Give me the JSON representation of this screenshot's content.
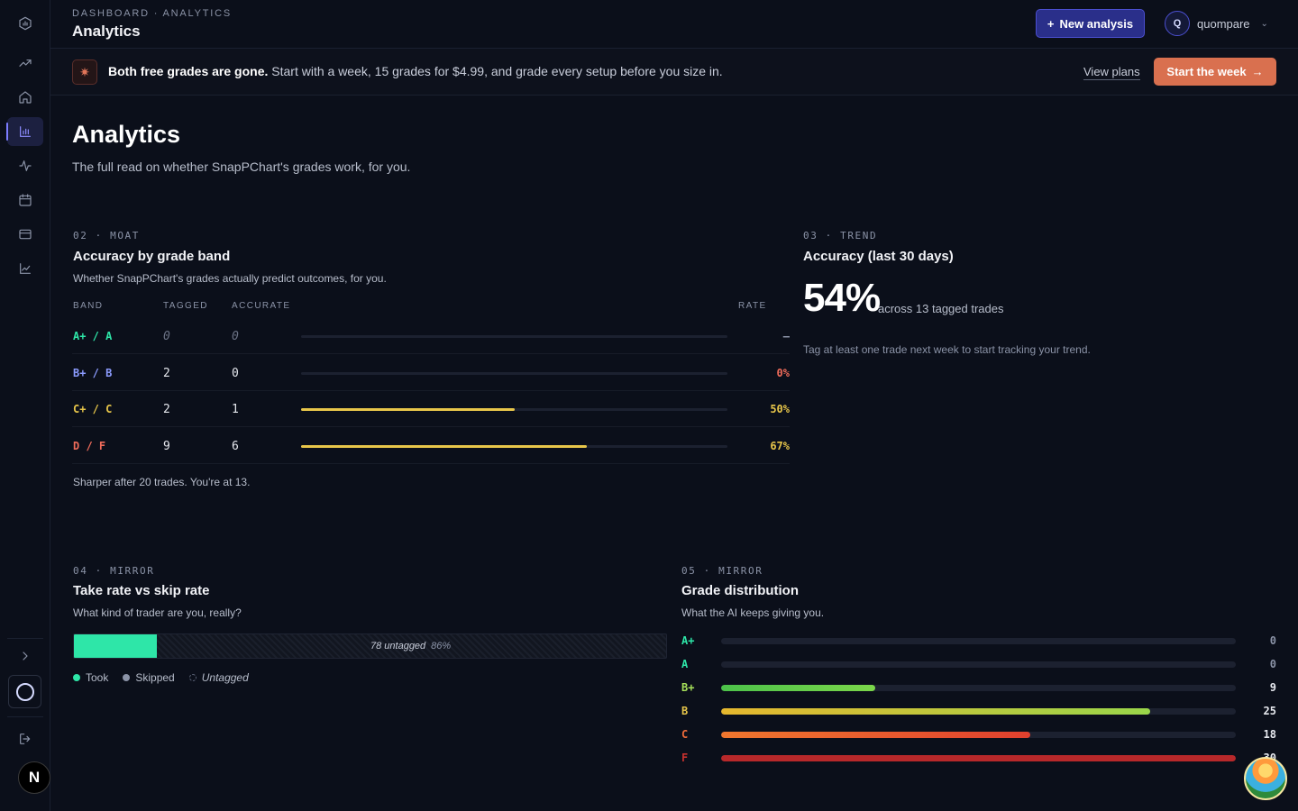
{
  "topbar": {
    "breadcrumb": "DASHBOARD · ANALYTICS",
    "title": "Analytics",
    "new_button": "New analysis",
    "user_initial": "Q",
    "user_name": "quompare"
  },
  "banner": {
    "bold": "Both free grades are gone.",
    "text": "Start with a week, 15 grades for $4.99, and grade every setup before you size in.",
    "view_plans": "View plans",
    "start": "Start the week"
  },
  "page": {
    "title": "Analytics",
    "subtitle": "The full read on whether SnapPChart's grades work, for you."
  },
  "moat": {
    "eyebrow": "02 · MOAT",
    "title": "Accuracy by grade band",
    "subtitle": "Whether SnapPChart's grades actually predict outcomes, for you.",
    "headers": {
      "band": "BAND",
      "tagged": "TAGGED",
      "accurate": "ACCURATE",
      "rate": "RATE"
    },
    "rows": [
      {
        "band": "A+ / A",
        "tagged": "0",
        "accurate": "0",
        "rate": "–",
        "fill": 0,
        "color": "#2ee6a8",
        "rate_color": "#8b93a7"
      },
      {
        "band": "B+ / B",
        "tagged": "2",
        "accurate": "0",
        "rate": "0%",
        "fill": 0,
        "color": "#8c9cff",
        "rate_color": "#ef6b5a"
      },
      {
        "band": "C+ / C",
        "tagged": "2",
        "accurate": "1",
        "rate": "50%",
        "fill": 0.5,
        "color": "#e8c64a",
        "rate_color": "#e8c64a"
      },
      {
        "band": "D / F",
        "tagged": "9",
        "accurate": "6",
        "rate": "67%",
        "fill": 0.67,
        "color": "#ef6b5a",
        "rate_color": "#e8c64a"
      }
    ],
    "footnote": "Sharper after 20 trades. You're at 13."
  },
  "trend": {
    "eyebrow": "03 · TREND",
    "title": "Accuracy (last 30 days)",
    "value": "54%",
    "value_sub": "across 13 tagged trades",
    "note": "Tag at least one trade next week to start tracking your trend."
  },
  "take_rate": {
    "eyebrow": "04 · MIRROR",
    "title": "Take rate vs skip rate",
    "subtitle": "What kind of trader are you, really?",
    "took_fraction": 0.14,
    "untagged_label": "78 untagged",
    "untagged_pct": "86%",
    "legend": {
      "took": "Took",
      "skipped": "Skipped",
      "untagged": "Untagged"
    },
    "colors": {
      "took": "#2ee6a8",
      "skipped": "#8b93a7"
    }
  },
  "distribution": {
    "eyebrow": "05 · MIRROR",
    "title": "Grade distribution",
    "subtitle": "What the AI keeps giving you.",
    "max": 30,
    "rows": [
      {
        "grade": "A+",
        "count": "0",
        "value": 0,
        "color": "#2ee6a8",
        "fill": "#2ee6a8"
      },
      {
        "grade": "A",
        "count": "0",
        "value": 0,
        "color": "#2ee6a8",
        "fill": "#2ee6a8"
      },
      {
        "grade": "B+",
        "count": "9",
        "value": 9,
        "color": "#a6e05a",
        "fill": "linear-gradient(90deg,#4cc24a,#7bd64a)"
      },
      {
        "grade": "B",
        "count": "25",
        "value": 25,
        "color": "#e8c64a",
        "fill": "linear-gradient(90deg,#e6b72e,#9ad64a)"
      },
      {
        "grade": "C",
        "count": "18",
        "value": 18,
        "color": "#ef6b3a",
        "fill": "linear-gradient(90deg,#f0772e,#e0402e)"
      },
      {
        "grade": "F",
        "count": "30",
        "value": 30,
        "color": "#c8312e",
        "fill": "#b8282a"
      }
    ]
  }
}
